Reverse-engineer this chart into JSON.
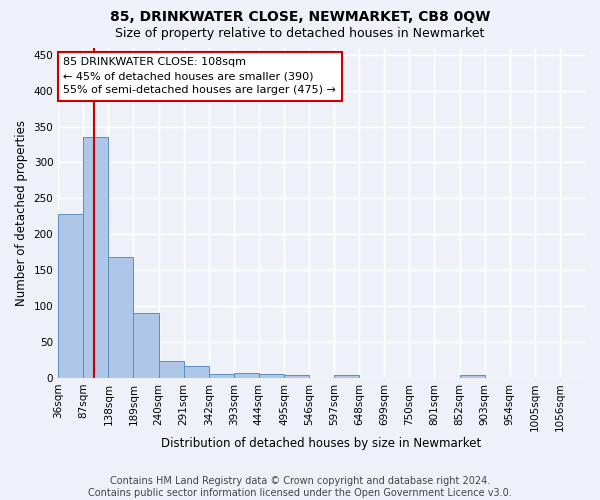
{
  "title": "85, DRINKWATER CLOSE, NEWMARKET, CB8 0QW",
  "subtitle": "Size of property relative to detached houses in Newmarket",
  "xlabel": "Distribution of detached houses by size in Newmarket",
  "ylabel": "Number of detached properties",
  "bin_labels": [
    "36sqm",
    "87sqm",
    "138sqm",
    "189sqm",
    "240sqm",
    "291sqm",
    "342sqm",
    "393sqm",
    "444sqm",
    "495sqm",
    "546sqm",
    "597sqm",
    "648sqm",
    "699sqm",
    "750sqm",
    "801sqm",
    "852sqm",
    "903sqm",
    "954sqm",
    "1005sqm",
    "1056sqm"
  ],
  "bar_heights": [
    228,
    336,
    168,
    90,
    23,
    17,
    6,
    7,
    5,
    4,
    0,
    4,
    0,
    0,
    0,
    0,
    4,
    0,
    0,
    0,
    0
  ],
  "bar_color": "#aec6e8",
  "bar_edge_color": "#5a8fc2",
  "annotation_line1": "85 DRINKWATER CLOSE: 108sqm",
  "annotation_line2": "← 45% of detached houses are smaller (390)",
  "annotation_line3": "55% of semi-detached houses are larger (475) →",
  "annotation_box_color": "#ffffff",
  "annotation_box_edge_color": "#cc0000",
  "property_line_color": "#cc0000",
  "ylim": [
    0,
    460
  ],
  "yticks": [
    0,
    50,
    100,
    150,
    200,
    250,
    300,
    350,
    400,
    450
  ],
  "footer_text": "Contains HM Land Registry data © Crown copyright and database right 2024.\nContains public sector information licensed under the Open Government Licence v3.0.",
  "background_color": "#eef2f8",
  "plot_background_color": "#eef2f8",
  "grid_color": "#ffffff",
  "title_fontsize": 10,
  "subtitle_fontsize": 9,
  "axis_label_fontsize": 8.5,
  "tick_fontsize": 7.5,
  "footer_fontsize": 7,
  "annotation_fontsize": 8
}
